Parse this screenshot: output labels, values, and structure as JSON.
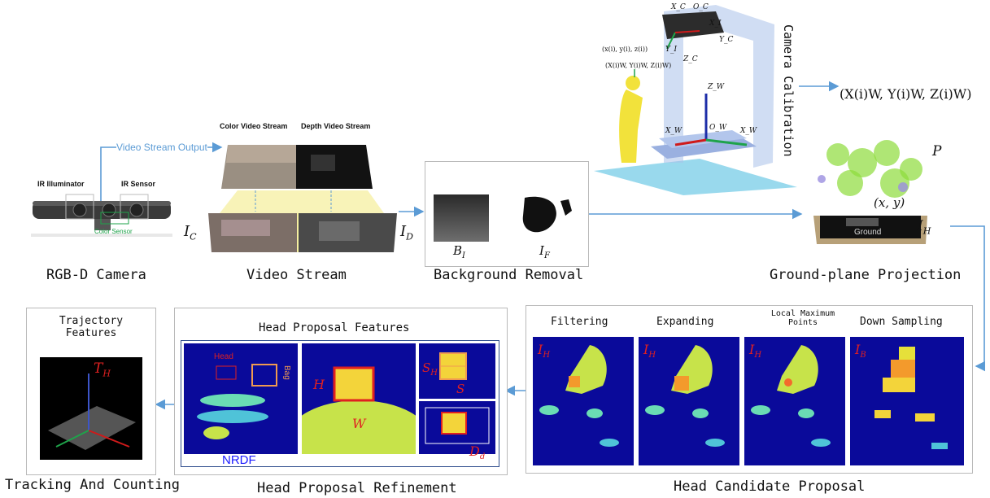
{
  "stages": {
    "rgbd_camera": "RGB-D Camera",
    "video_stream": "Video Stream",
    "background_removal": "Background Removal",
    "ground_plane_projection": "Ground-plane Projection",
    "head_candidate_proposal": "Head Candidate Proposal",
    "head_proposal_refinement": "Head Proposal Refinement",
    "tracking_and_counting": "Tracking And Counting"
  },
  "camera": {
    "ir_illuminator": "IR Illuminator",
    "ir_sensor": "IR Sensor",
    "color_sensor": "Color Sensor"
  },
  "stream": {
    "output_label": "Video Stream Output",
    "color_stream": "Color Video Stream",
    "depth_stream": "Depth Video Stream",
    "ic": "I",
    "ic_sub": "C",
    "id": "I",
    "id_sub": "D"
  },
  "background": {
    "bi": "B",
    "bi_sub": "I",
    "if": "I",
    "if_sub": "F"
  },
  "calibration": {
    "label": "Camera Calibration",
    "world_point": "(X(i)W, Y(i)W, Z(i)W)",
    "cam_point": "(x(i), y(i), z(i))",
    "world_point_small": "(X(i)W, Y(i)W, Z(i)W)",
    "xc": "X_C",
    "oc": "O_C",
    "xi": "X_I",
    "yi": "Y_I",
    "yc": "Y_C",
    "zc": "Z_C",
    "zw": "Z_W",
    "ow": "O_W",
    "xw": "X_W",
    "xw2": "X_W"
  },
  "projection": {
    "p": "P",
    "xy": "(x, y)",
    "ih": "I",
    "ih_sub": "H",
    "ground": "Ground"
  },
  "candidate": {
    "filtering": "Filtering",
    "expanding": "Expanding",
    "local_max_1": "Local Maximum",
    "local_max_2": "Points",
    "down_sampling": "Down Sampling",
    "ih": "I",
    "ih_sub": "H",
    "ib": "I",
    "ib_sub": "B"
  },
  "refinement": {
    "title": "Head Proposal Features",
    "head": "Head",
    "bag": "Bag",
    "nrdf": "NRDF",
    "h": "H",
    "w": "W",
    "sh": "S",
    "sh_sub": "H",
    "s": "S",
    "dd": "D",
    "dd_sub": "d"
  },
  "tracking": {
    "title_1": "Trajectory",
    "title_2": "Features",
    "th": "T",
    "th_sub": "H"
  },
  "colors": {
    "arrow": "#5b9bd5",
    "heat_bg": "#0a0a9a",
    "label_red": "#e02020",
    "nrdf_blue": "#1a1aff",
    "orange": "#f09a50"
  }
}
